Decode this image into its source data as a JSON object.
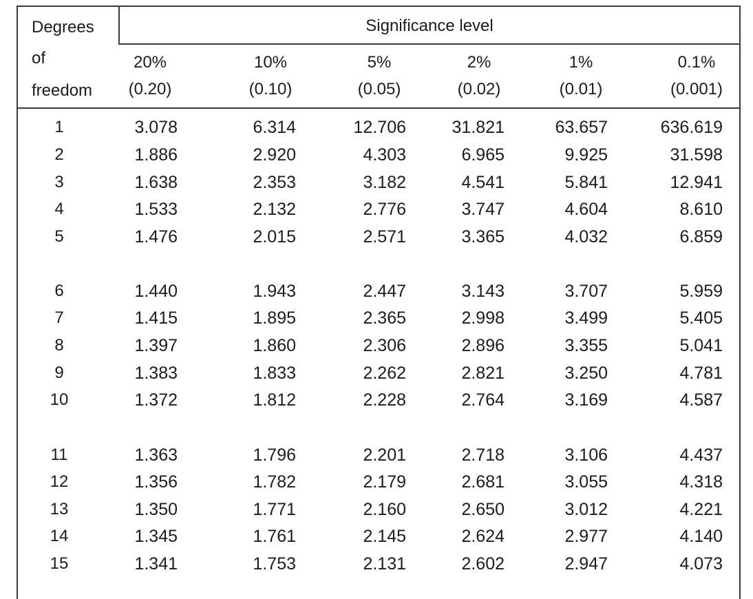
{
  "header": {
    "dof_line1": "Degrees",
    "dof_line2": "of",
    "dof_line3": "freedom",
    "significance_title": "Significance level",
    "columns": [
      {
        "percent": "20%",
        "decimal": "(0.20)"
      },
      {
        "percent": "10%",
        "decimal": "(0.10)"
      },
      {
        "percent": "5%",
        "decimal": "(0.05)"
      },
      {
        "percent": "2%",
        "decimal": "(0.02)"
      },
      {
        "percent": "1%",
        "decimal": "(0.01)"
      },
      {
        "percent": "0.1%",
        "decimal": "(0.001)"
      }
    ]
  },
  "rows": [
    {
      "df": "1",
      "values": [
        "3.078",
        "6.314",
        "12.706",
        "31.821",
        "63.657",
        "636.619"
      ]
    },
    {
      "df": "2",
      "values": [
        "1.886",
        "2.920",
        "4.303",
        "6.965",
        "9.925",
        "31.598"
      ]
    },
    {
      "df": "3",
      "values": [
        "1.638",
        "2.353",
        "3.182",
        "4.541",
        "5.841",
        "12.941"
      ]
    },
    {
      "df": "4",
      "values": [
        "1.533",
        "2.132",
        "2.776",
        "3.747",
        "4.604",
        "8.610"
      ]
    },
    {
      "df": "5",
      "values": [
        "1.476",
        "2.015",
        "2.571",
        "3.365",
        "4.032",
        "6.859"
      ]
    },
    {
      "df": "6",
      "values": [
        "1.440",
        "1.943",
        "2.447",
        "3.143",
        "3.707",
        "5.959"
      ]
    },
    {
      "df": "7",
      "values": [
        "1.415",
        "1.895",
        "2.365",
        "2.998",
        "3.499",
        "5.405"
      ]
    },
    {
      "df": "8",
      "values": [
        "1.397",
        "1.860",
        "2.306",
        "2.896",
        "3.355",
        "5.041"
      ]
    },
    {
      "df": "9",
      "values": [
        "1.383",
        "1.833",
        "2.262",
        "2.821",
        "3.250",
        "4.781"
      ]
    },
    {
      "df": "10",
      "values": [
        "1.372",
        "1.812",
        "2.228",
        "2.764",
        "3.169",
        "4.587"
      ]
    },
    {
      "df": "11",
      "values": [
        "1.363",
        "1.796",
        "2.201",
        "2.718",
        "3.106",
        "4.437"
      ]
    },
    {
      "df": "12",
      "values": [
        "1.356",
        "1.782",
        "2.179",
        "2.681",
        "3.055",
        "4.318"
      ]
    },
    {
      "df": "13",
      "values": [
        "1.350",
        "1.771",
        "2.160",
        "2.650",
        "3.012",
        "4.221"
      ]
    },
    {
      "df": "14",
      "values": [
        "1.345",
        "1.761",
        "2.145",
        "2.624",
        "2.977",
        "4.140"
      ]
    },
    {
      "df": "15",
      "values": [
        "1.341",
        "1.753",
        "2.131",
        "2.602",
        "2.947",
        "4.073"
      ]
    }
  ]
}
